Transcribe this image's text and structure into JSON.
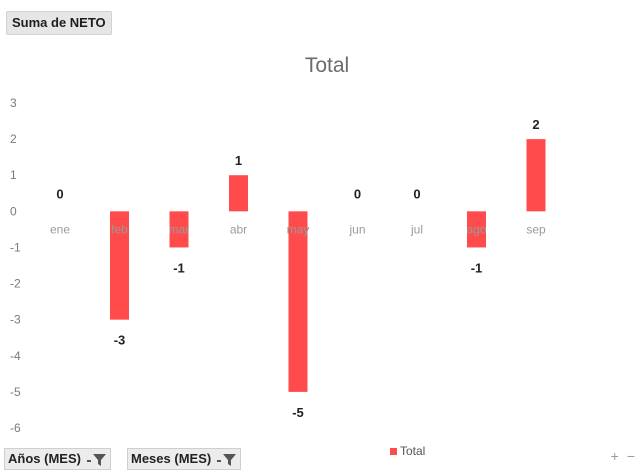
{
  "value_field": "Suma de NETO",
  "filters": [
    {
      "label": "Años (MES)",
      "icon": "filter-icon"
    },
    {
      "label": "Meses (MES)",
      "icon": "filter-icon"
    }
  ],
  "zoom": {
    "plus": "+",
    "minus": "−"
  },
  "colors": {
    "bar": "#ff4b4b"
  },
  "chart_data": {
    "type": "bar",
    "title": "Total",
    "categories": [
      "ene",
      "feb",
      "mar",
      "abr",
      "may",
      "jun",
      "jul",
      "ago",
      "sep"
    ],
    "series": [
      {
        "name": "Total",
        "values": [
          0,
          -3,
          -1,
          1,
          -5,
          0,
          0,
          -1,
          2
        ]
      }
    ],
    "ylim": [
      -6,
      3
    ],
    "yticks": [
      3,
      2,
      1,
      0,
      -1,
      -2,
      -3,
      -4,
      -5,
      -6
    ],
    "legend_position": "bottom",
    "grid": false
  }
}
